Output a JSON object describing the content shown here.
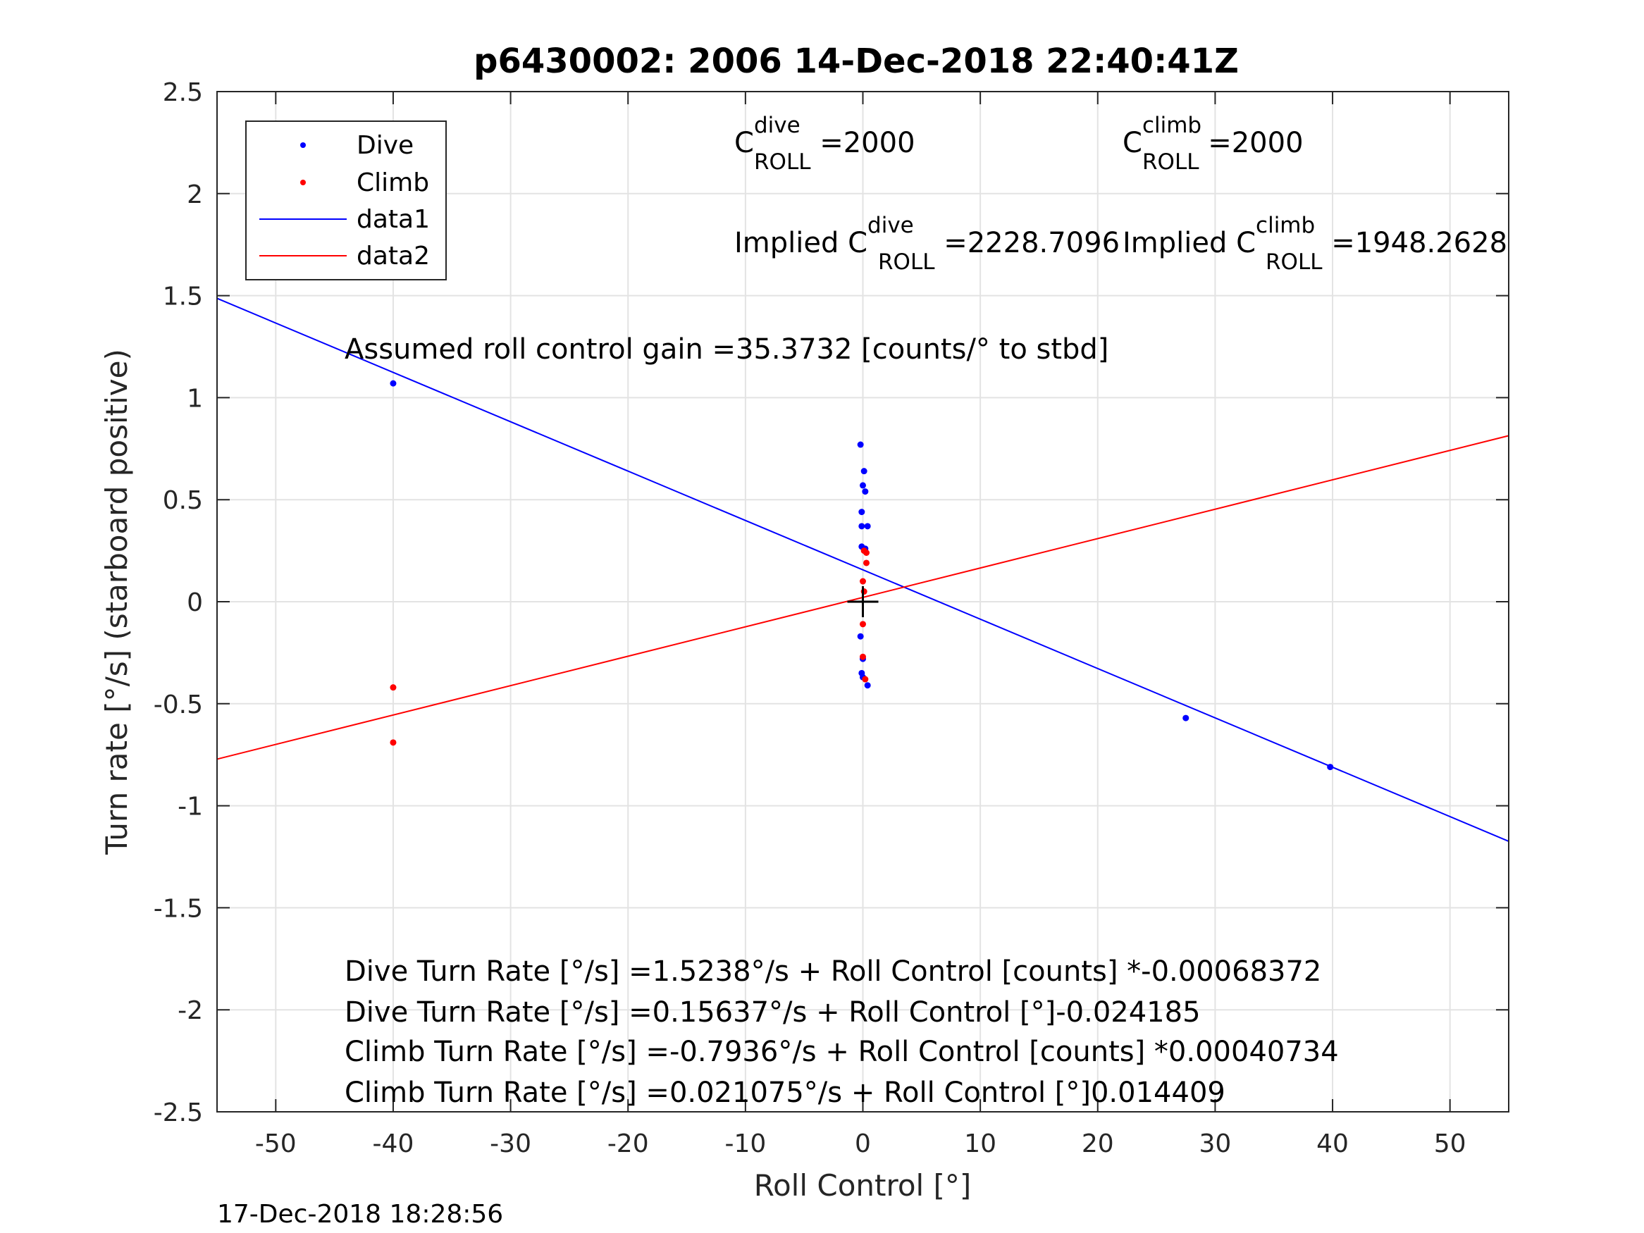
{
  "chart_data": {
    "type": "scatter",
    "title": "p6430002:  2006 14-Dec-2018 22:40:41Z",
    "xlabel": "Roll Control [°]",
    "ylabel": "Turn rate [°/s] (starboard positive)",
    "xlim": [
      -55,
      55
    ],
    "ylim": [
      -2.5,
      2.5
    ],
    "xticks": [
      -50,
      -40,
      -30,
      -20,
      -10,
      0,
      10,
      20,
      30,
      40,
      50
    ],
    "xtick_labels": [
      "-50",
      "-40",
      "-30",
      "-20",
      "-10",
      "0",
      "10",
      "20",
      "30",
      "40",
      "50"
    ],
    "yticks": [
      2.5,
      2,
      1.5,
      1,
      0.5,
      0,
      -0.5,
      -1,
      -1.5,
      -2,
      -2.5
    ],
    "ytick_labels": [
      "2.5",
      "2",
      "1.5",
      "1",
      "0.5",
      "0",
      "-0.5",
      "-1",
      "-1.5",
      "-2",
      "-2.5"
    ],
    "grid": true,
    "legend_position": "top-left",
    "series": [
      {
        "name": "Dive",
        "kind": "points",
        "color": "#0000ff",
        "points": [
          [
            -40,
            1.07
          ],
          [
            -0.2,
            0.77
          ],
          [
            0.1,
            0.64
          ],
          [
            0.0,
            0.57
          ],
          [
            0.2,
            0.54
          ],
          [
            -0.1,
            0.44
          ],
          [
            -0.1,
            0.37
          ],
          [
            0.4,
            0.37
          ],
          [
            -0.1,
            0.27
          ],
          [
            0.2,
            0.26
          ],
          [
            -0.2,
            -0.17
          ],
          [
            0.0,
            -0.28
          ],
          [
            -0.1,
            -0.35
          ],
          [
            0.0,
            -0.37
          ],
          [
            0.4,
            -0.41
          ],
          [
            27.5,
            -0.57
          ],
          [
            39.8,
            -0.81
          ]
        ]
      },
      {
        "name": "Climb",
        "kind": "points",
        "color": "#ff0000",
        "points": [
          [
            -40,
            -0.42
          ],
          [
            -40,
            -0.69
          ],
          [
            0.1,
            0.25
          ],
          [
            0.3,
            0.24
          ],
          [
            0.3,
            0.19
          ],
          [
            0.0,
            0.1
          ],
          [
            0.1,
            0.05
          ],
          [
            0.0,
            -0.11
          ],
          [
            0.0,
            -0.27
          ],
          [
            0.2,
            -0.38
          ]
        ]
      },
      {
        "name": "data1",
        "kind": "line",
        "color": "#0000ff",
        "x": [
          -55,
          55
        ],
        "y": [
          1.4866,
          -1.1741
        ]
      },
      {
        "name": "data2",
        "kind": "line",
        "color": "#ff0000",
        "x": [
          -55,
          55
        ],
        "y": [
          -0.7715,
          0.8136
        ]
      }
    ],
    "origin_marker": [
      0,
      0
    ],
    "annotations": {
      "c_dive_base": "C",
      "c_dive_sup": "dive",
      "c_dive_sub": "ROLL",
      "c_dive_val": " =2000",
      "c_climb_base": "C",
      "c_climb_sup": "climb",
      "c_climb_sub": "ROLL",
      "c_climb_val": " =2000",
      "implied_dive_base": "Implied C",
      "implied_dive_sup": "dive",
      "implied_dive_sub": "ROLL",
      "implied_dive_val": " =2228.7096",
      "implied_climb_base": "Implied C",
      "implied_climb_sup": "climb",
      "implied_climb_sub": "ROLL",
      "implied_climb_val": " =1948.2628",
      "gain": "Assumed roll control gain =35.3732 [counts/° to stbd]",
      "fit_lines": [
        "Dive Turn Rate [°/s] =1.5238°/s + Roll Control [counts] *-0.00068372",
        "Dive Turn Rate [°/s] =0.15637°/s + Roll Control [°]-0.024185",
        "Climb Turn Rate [°/s] =-0.7936°/s + Roll Control [counts] *0.00040734",
        "Climb Turn Rate [°/s] =0.021075°/s + Roll Control [°]0.014409"
      ]
    },
    "footer": "17-Dec-2018 18:28:56"
  }
}
